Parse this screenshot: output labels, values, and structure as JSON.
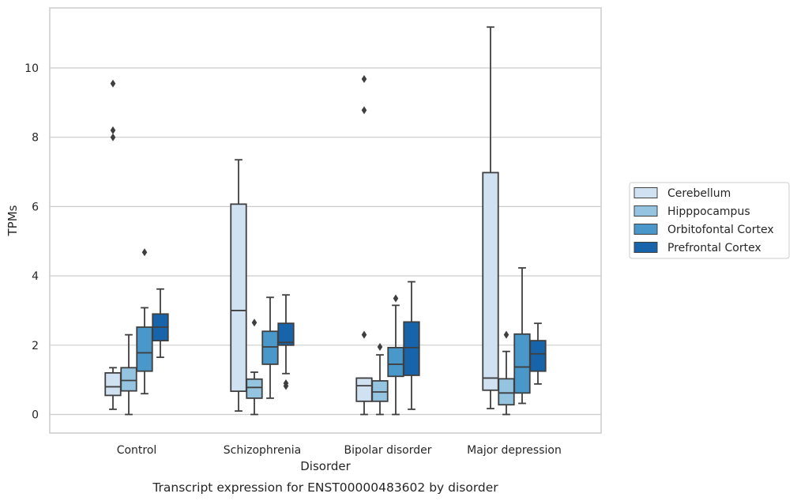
{
  "chart_data": {
    "type": "box",
    "xlabel": "Disorder",
    "ylabel": "TPMs",
    "caption": "Transcript expression for ENST00000483602 by disorder",
    "ylim": [
      -0.5,
      11.8
    ],
    "yticks": [
      0,
      2,
      4,
      6,
      8,
      10
    ],
    "grid": "horizontal",
    "legend_position": "right",
    "categories": [
      "Control",
      "Schizophrenia",
      "Bipolar disorder",
      "Major depression"
    ],
    "series": [
      {
        "name": "Cerebellum",
        "color": "#d0e1f2",
        "boxes": [
          {
            "whislo": 0.15,
            "q1": 0.55,
            "med": 0.8,
            "q3": 1.2,
            "whishi": 1.35,
            "fliers": [
              8.0,
              8.2,
              9.55
            ]
          },
          {
            "whislo": 0.1,
            "q1": 0.67,
            "med": 3.0,
            "q3": 6.07,
            "whishi": 7.35,
            "fliers": []
          },
          {
            "whislo": 0.0,
            "q1": 0.38,
            "med": 0.83,
            "q3": 1.05,
            "whishi": 1.05,
            "fliers": [
              2.3,
              8.78,
              9.68
            ]
          },
          {
            "whislo": 0.17,
            "q1": 0.7,
            "med": 1.05,
            "q3": 6.98,
            "whishi": 11.18,
            "fliers": []
          }
        ]
      },
      {
        "name": "Hipppocampus",
        "color": "#94c4df",
        "boxes": [
          {
            "whislo": 0.0,
            "q1": 0.68,
            "med": 0.98,
            "q3": 1.35,
            "whishi": 2.3,
            "fliers": []
          },
          {
            "whislo": 0.0,
            "q1": 0.47,
            "med": 0.78,
            "q3": 1.02,
            "whishi": 1.22,
            "fliers": [
              2.65
            ]
          },
          {
            "whislo": 0.0,
            "q1": 0.38,
            "med": 0.65,
            "q3": 0.97,
            "whishi": 1.72,
            "fliers": [
              1.95
            ]
          },
          {
            "whislo": 0.0,
            "q1": 0.28,
            "med": 0.62,
            "q3": 1.03,
            "whishi": 1.82,
            "fliers": [
              2.3
            ]
          }
        ]
      },
      {
        "name": "Orbitofontal Cortex",
        "color": "#4a98c9",
        "boxes": [
          {
            "whislo": 0.6,
            "q1": 1.25,
            "med": 1.78,
            "q3": 2.52,
            "whishi": 3.08,
            "fliers": [
              4.68
            ]
          },
          {
            "whislo": 0.47,
            "q1": 1.45,
            "med": 1.95,
            "q3": 2.4,
            "whishi": 3.38,
            "fliers": []
          },
          {
            "whislo": 0.0,
            "q1": 1.1,
            "med": 1.45,
            "q3": 1.93,
            "whishi": 3.15,
            "fliers": [
              3.35
            ]
          },
          {
            "whislo": 0.32,
            "q1": 0.62,
            "med": 1.37,
            "q3": 2.32,
            "whishi": 4.23,
            "fliers": []
          }
        ]
      },
      {
        "name": "Prefrontal Cortex",
        "color": "#1764ab",
        "boxes": [
          {
            "whislo": 1.65,
            "q1": 2.13,
            "med": 2.52,
            "q3": 2.9,
            "whishi": 3.62,
            "fliers": []
          },
          {
            "whislo": 1.18,
            "q1": 2.0,
            "med": 2.08,
            "q3": 2.63,
            "whishi": 3.45,
            "fliers": [
              0.82,
              0.9
            ]
          },
          {
            "whislo": 0.15,
            "q1": 1.13,
            "med": 1.93,
            "q3": 2.67,
            "whishi": 3.83,
            "fliers": []
          },
          {
            "whislo": 0.88,
            "q1": 1.25,
            "med": 1.75,
            "q3": 2.13,
            "whishi": 2.63,
            "fliers": []
          }
        ]
      }
    ]
  }
}
